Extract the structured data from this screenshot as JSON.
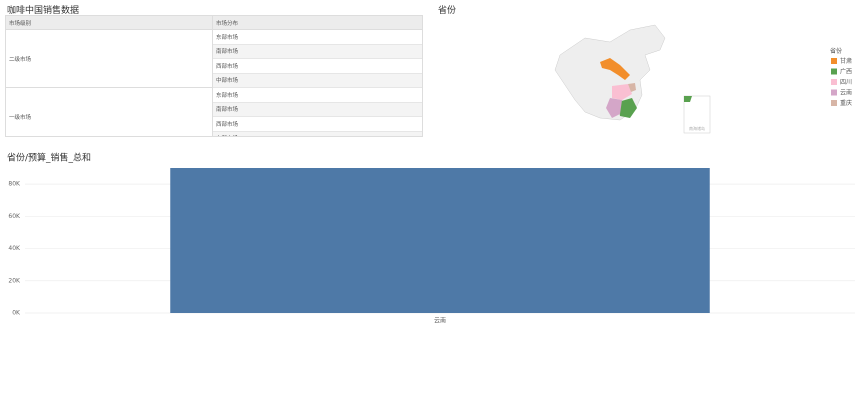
{
  "table": {
    "title": "咖啡中国销售数据",
    "header": [
      "市场级别",
      "市场分布"
    ],
    "groups": [
      {
        "name": "二级市场",
        "rows": [
          "东部市场",
          "南部市场",
          "西部市场",
          "中部市场"
        ]
      },
      {
        "name": "一级市场",
        "rows": [
          "东部市场",
          "南部市场",
          "西部市场",
          "中部市场"
        ]
      }
    ]
  },
  "map": {
    "title": "省份",
    "legend_title": "省份",
    "inset_label": "南海诸岛",
    "items": [
      {
        "name": "甘肃",
        "color": "#f28e2b"
      },
      {
        "name": "广西",
        "color": "#59a14f"
      },
      {
        "name": "四川",
        "color": "#fabfd2"
      },
      {
        "name": "云南",
        "color": "#d4a6c8"
      },
      {
        "name": "重庆",
        "color": "#d7b5a6"
      }
    ]
  },
  "chart_data": {
    "type": "bar",
    "title": "省份/预算_销售_总和",
    "categories": [
      "云南"
    ],
    "values": [
      90000
    ],
    "color": "#4e79a7",
    "ylim": [
      0,
      90000
    ],
    "yticks": [
      {
        "value": 0,
        "label": "0K"
      },
      {
        "value": 20000,
        "label": "20K"
      },
      {
        "value": 40000,
        "label": "40K"
      },
      {
        "value": 60000,
        "label": "60K"
      },
      {
        "value": 80000,
        "label": "80K"
      }
    ],
    "grid": true
  }
}
